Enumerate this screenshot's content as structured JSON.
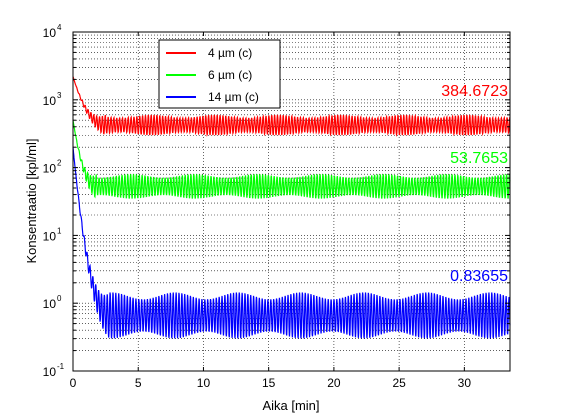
{
  "chart_data": {
    "type": "line",
    "xlabel": "Aika [min]",
    "ylabel": "Konsentraatio [kpl/ml]",
    "xlim": [
      0,
      33.5
    ],
    "ylim": [
      0.1,
      10000
    ],
    "yscale": "log",
    "grid": true,
    "legend_position": "top-left",
    "x_ticks": [
      "0",
      "5",
      "10",
      "15",
      "20",
      "25",
      "30"
    ],
    "y_ticks": [
      {
        "base": "10",
        "exp": "-1"
      },
      {
        "base": "10",
        "exp": "0"
      },
      {
        "base": "10",
        "exp": "1"
      },
      {
        "base": "10",
        "exp": "2"
      },
      {
        "base": "10",
        "exp": "3"
      },
      {
        "base": "10",
        "exp": "4"
      }
    ],
    "series": [
      {
        "name": "4 µm (c)",
        "color": "#ff0000",
        "start": 2200,
        "decay_end": 2.5,
        "low": 300,
        "high": 600,
        "final_label": "384.6723"
      },
      {
        "name": "6 µm (c)",
        "color": "#00ff00",
        "start": 500,
        "decay_end": 1.8,
        "low": 35,
        "high": 80,
        "final_label": "53.7653"
      },
      {
        "name": "14 µm (c)",
        "color": "#0000ff",
        "start": 200,
        "decay_end": 2.8,
        "low": 0.3,
        "high": 1.45,
        "final_label": "0.83655"
      }
    ]
  }
}
